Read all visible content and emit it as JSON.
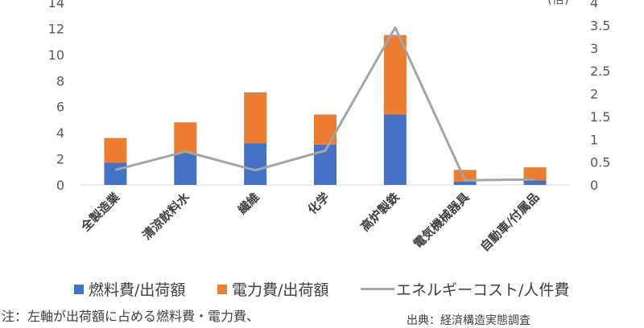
{
  "chart_data": {
    "type": "bar",
    "stacked": true,
    "categories": [
      "全製造業",
      "清涼飲料水",
      "繊維",
      "化学",
      "高炉製鉄",
      "電気機械器具",
      "自動車/付属品"
    ],
    "series": [
      {
        "name": "燃料費/出荷額",
        "axis": "left",
        "type": "bar",
        "color": "#4472C4",
        "values": [
          1.7,
          2.5,
          3.2,
          3.1,
          5.4,
          0.25,
          0.35
        ]
      },
      {
        "name": "電力費/出荷額",
        "axis": "left",
        "type": "bar",
        "color": "#ED7D31",
        "values": [
          1.9,
          2.3,
          3.9,
          2.3,
          6.1,
          0.9,
          1.0
        ]
      },
      {
        "name": "エネルギーコスト/人件費",
        "axis": "right",
        "type": "line",
        "color": "#A5A5A5",
        "values": [
          0.33,
          0.73,
          0.32,
          0.75,
          3.45,
          0.1,
          0.12
        ]
      }
    ],
    "ylim": [
      0,
      14
    ],
    "yticks": [
      "0",
      "2",
      "4",
      "6",
      "8",
      "10",
      "12",
      "14"
    ],
    "y2lim": [
      0,
      4
    ],
    "y2ticks": [
      "0",
      "0.5",
      "1",
      "1.5",
      "2",
      "2.5",
      "3",
      "3.5",
      "4"
    ],
    "y2unit": "(倍)",
    "legend_position": "bottom",
    "grid": false
  },
  "note": "注：左軸が出荷額に占める燃料費・電力費、",
  "source": "出典：経済構造実態調査"
}
